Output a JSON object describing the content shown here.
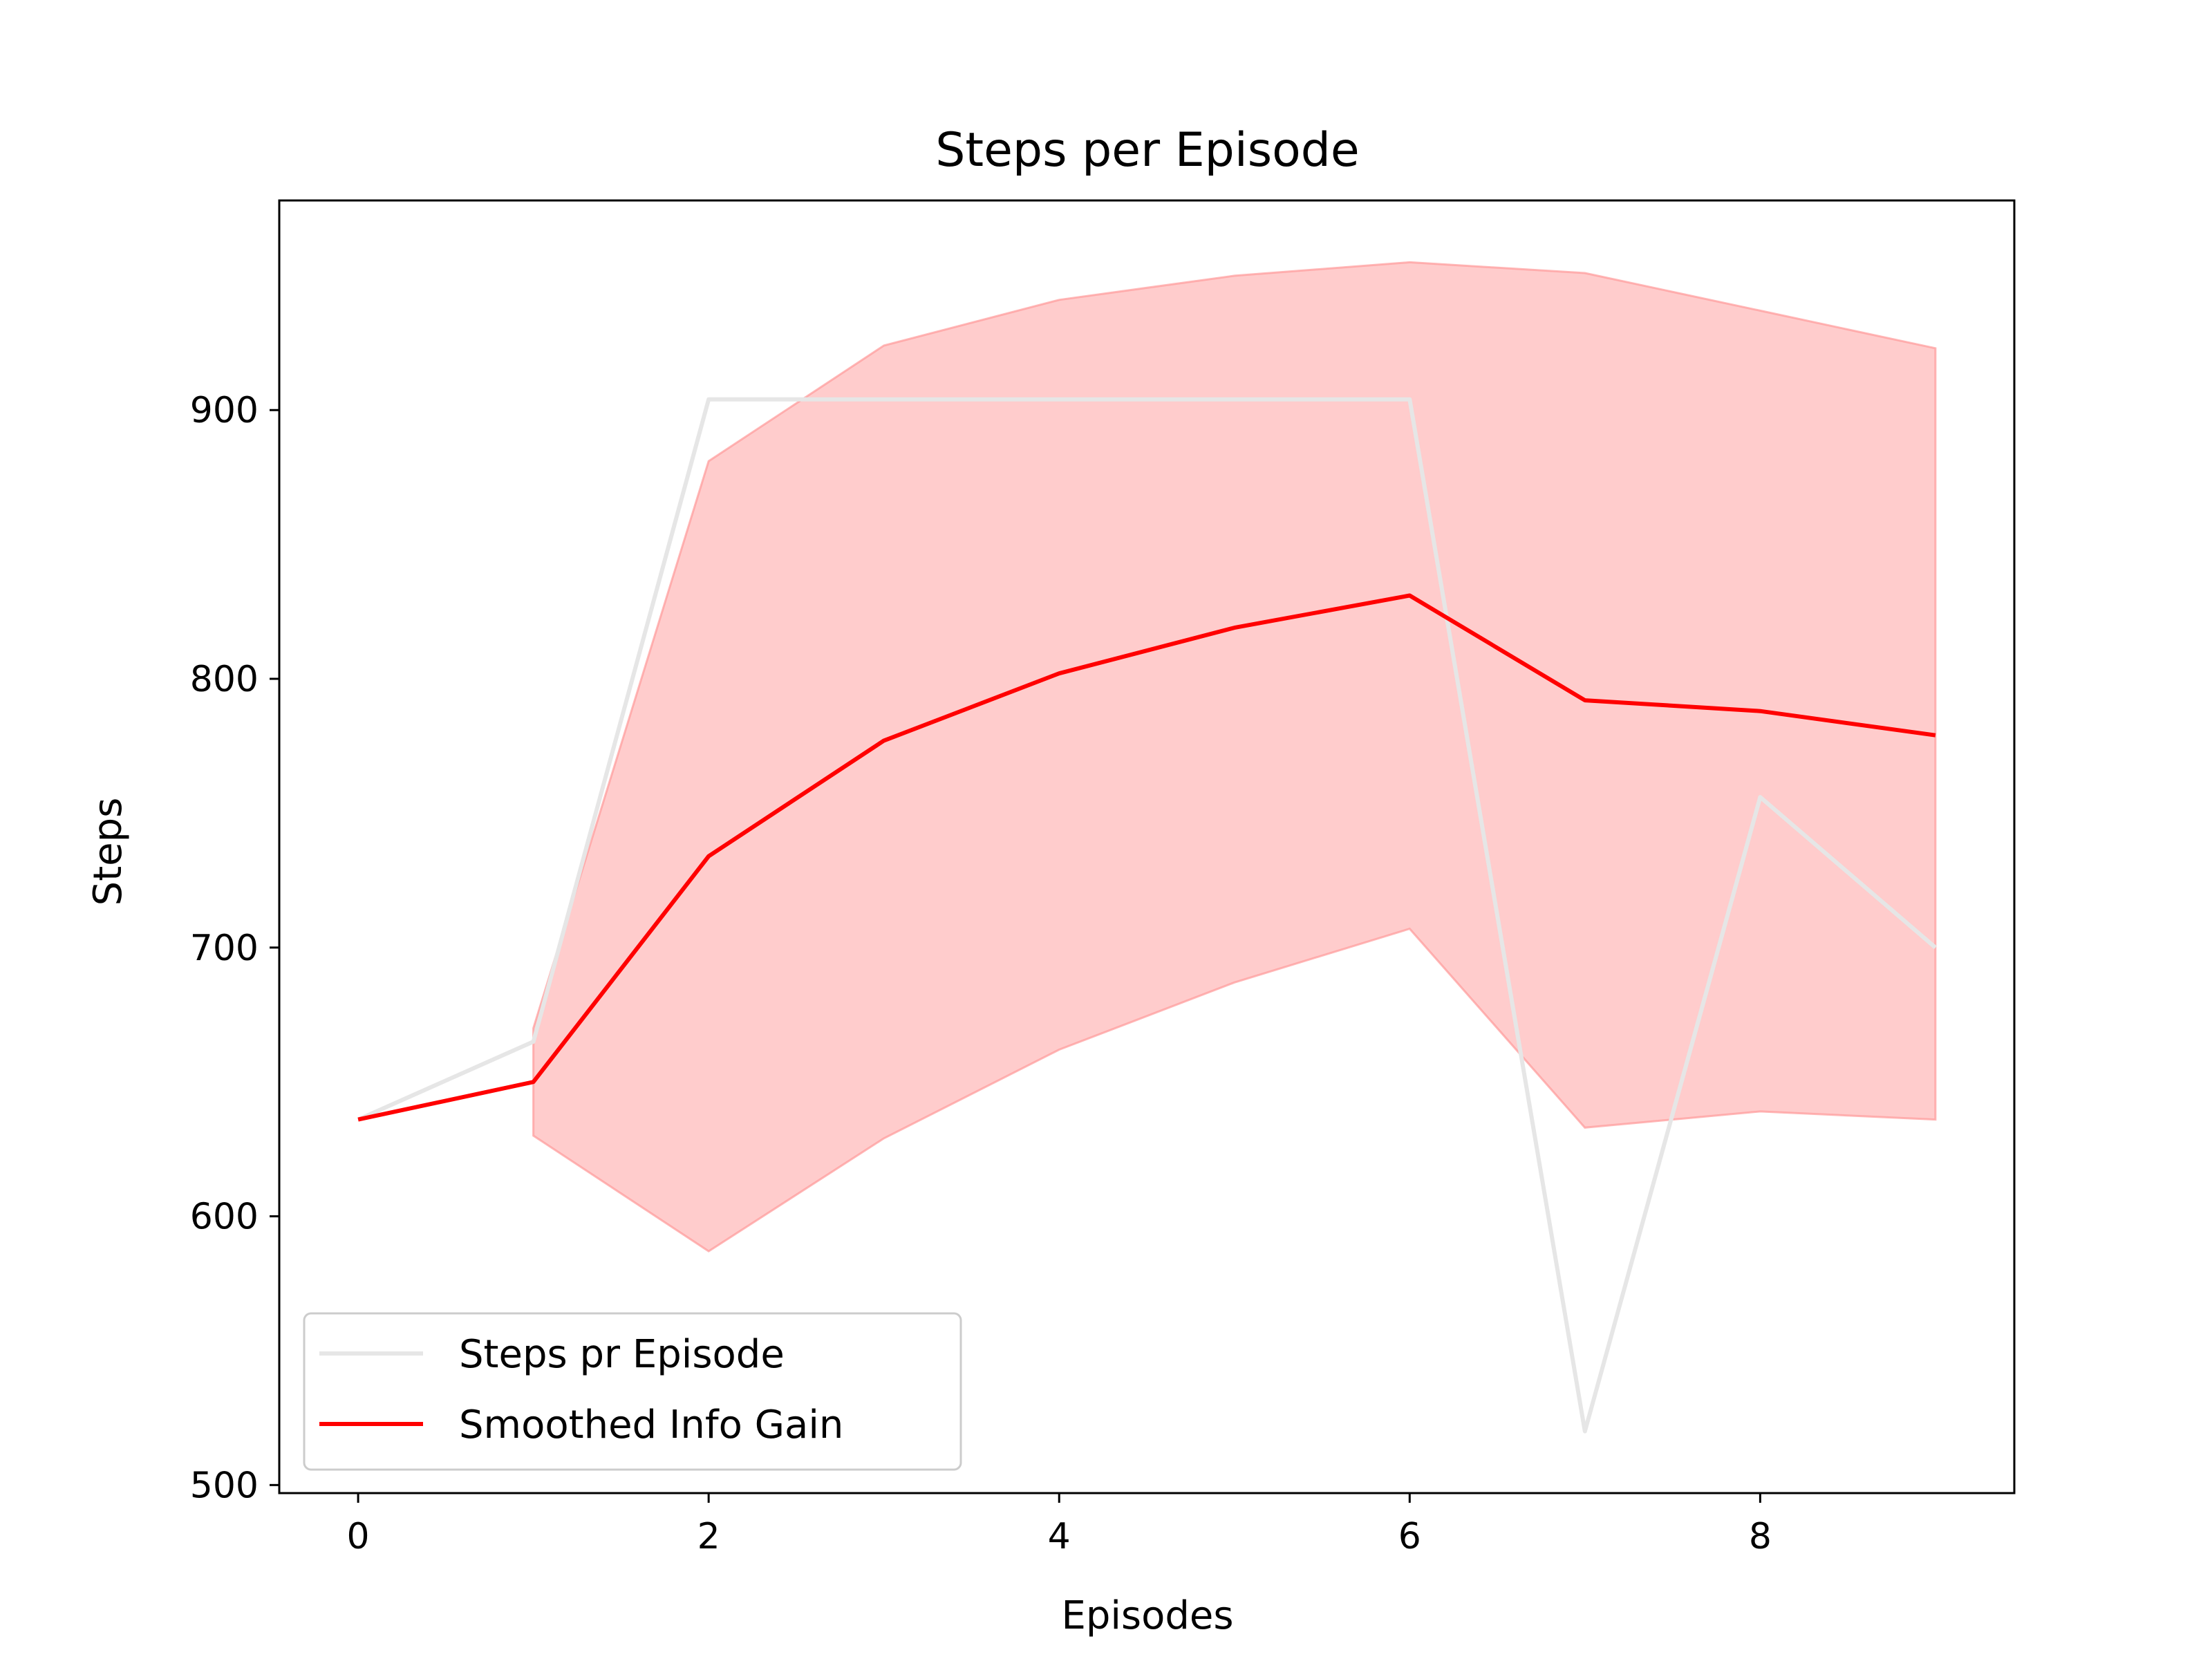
{
  "chart_data": {
    "type": "line",
    "title": "Steps per Episode",
    "xlabel": "Episodes",
    "ylabel": "Steps",
    "xlim": [
      -0.45,
      9.45
    ],
    "ylim": [
      497,
      978
    ],
    "xticks": [
      0,
      2,
      4,
      6,
      8
    ],
    "yticks": [
      500,
      600,
      700,
      800,
      900
    ],
    "grid": false,
    "legend_position": "lower-left",
    "series": [
      {
        "name": "Steps pr Episode",
        "color": "#e6e6e6",
        "x": [
          0,
          1,
          2,
          3,
          4,
          5,
          6,
          7,
          8,
          9
        ],
        "y": [
          636,
          665,
          904,
          904,
          904,
          904,
          904,
          520,
          756,
          700
        ]
      },
      {
        "name": "Smoothed Info Gain",
        "color": "#ff0000",
        "x": [
          0,
          1,
          2,
          3,
          4,
          5,
          6,
          7,
          8,
          9
        ],
        "y": [
          636,
          650,
          734,
          777,
          802,
          819,
          831,
          792,
          788,
          779
        ]
      }
    ],
    "band": {
      "color": "#ff9999",
      "x": [
        1,
        2,
        3,
        4,
        5,
        6,
        7,
        8,
        9
      ],
      "lower": [
        630,
        587,
        629,
        662,
        687,
        707,
        633,
        639,
        636
      ],
      "upper": [
        670,
        881,
        924,
        941,
        950,
        955,
        951,
        937,
        923
      ]
    }
  }
}
